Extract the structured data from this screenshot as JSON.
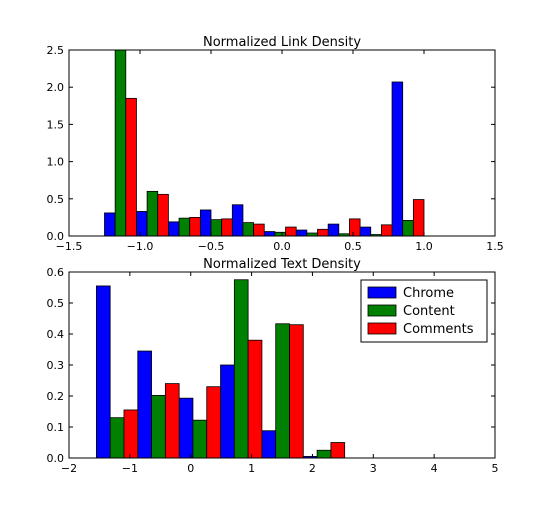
{
  "chart_data": [
    {
      "type": "bar",
      "title": "Normalized Link Density",
      "xlim": [
        -1.5,
        1.5
      ],
      "ylim": [
        0,
        2.5
      ],
      "xticks": [
        "−1.5",
        "−1.0",
        "−0.5",
        "0.0",
        "0.5",
        "1.0",
        "1.5"
      ],
      "xtick_values": [
        -1.5,
        -1.0,
        -0.5,
        0.0,
        0.5,
        1.0,
        1.5
      ],
      "yticks": [
        "0.0",
        "0.5",
        "1.0",
        "1.5",
        "2.0",
        "2.5"
      ],
      "ytick_values": [
        0,
        0.5,
        1.0,
        1.5,
        2.0,
        2.5
      ],
      "bin_edges": [
        -1.25,
        -1.025,
        -0.8,
        -0.575,
        -0.35,
        -0.125,
        0.1,
        0.325,
        0.55,
        0.775,
        1.0,
        1.225
      ],
      "series": [
        {
          "name": "Chrome",
          "color": "#0000ff",
          "values": [
            0.31,
            0.33,
            0.19,
            0.35,
            0.42,
            0.06,
            0.08,
            0.16,
            0.12,
            2.07
          ]
        },
        {
          "name": "Content",
          "color": "#008000",
          "values": [
            2.5,
            0.6,
            0.24,
            0.22,
            0.18,
            0.05,
            0.04,
            0.03,
            0.02,
            0.21
          ]
        },
        {
          "name": "Comments",
          "color": "#ff0000",
          "values": [
            1.85,
            0.56,
            0.25,
            0.23,
            0.16,
            0.12,
            0.09,
            0.23,
            0.15,
            0.49
          ]
        }
      ]
    },
    {
      "type": "bar",
      "title": "Normalized Text Density",
      "xlim": [
        -2,
        5
      ],
      "ylim": [
        0,
        0.6
      ],
      "xticks": [
        "−2",
        "−1",
        "0",
        "1",
        "2",
        "3",
        "4",
        "5"
      ],
      "xtick_values": [
        -2,
        -1,
        0,
        1,
        2,
        3,
        4,
        5
      ],
      "yticks": [
        "0.0",
        "0.1",
        "0.2",
        "0.3",
        "0.4",
        "0.5",
        "0.6"
      ],
      "ytick_values": [
        0,
        0.1,
        0.2,
        0.3,
        0.4,
        0.5,
        0.6
      ],
      "bin_edges": [
        -1.55,
        -0.87,
        -0.19,
        0.49,
        1.17,
        1.85,
        2.53
      ],
      "series": [
        {
          "name": "Chrome",
          "color": "#0000ff",
          "values": [
            0.555,
            0.345,
            0.193,
            0.3,
            0.088,
            0.005
          ]
        },
        {
          "name": "Content",
          "color": "#008000",
          "values": [
            0.13,
            0.202,
            0.122,
            0.575,
            0.433,
            0.025
          ]
        },
        {
          "name": "Comments",
          "color": "#ff0000",
          "values": [
            0.155,
            0.24,
            0.23,
            0.38,
            0.43,
            0.05
          ]
        }
      ],
      "legend": {
        "placement": "top-right",
        "entries": [
          "Chrome",
          "Content",
          "Comments"
        ]
      }
    }
  ]
}
